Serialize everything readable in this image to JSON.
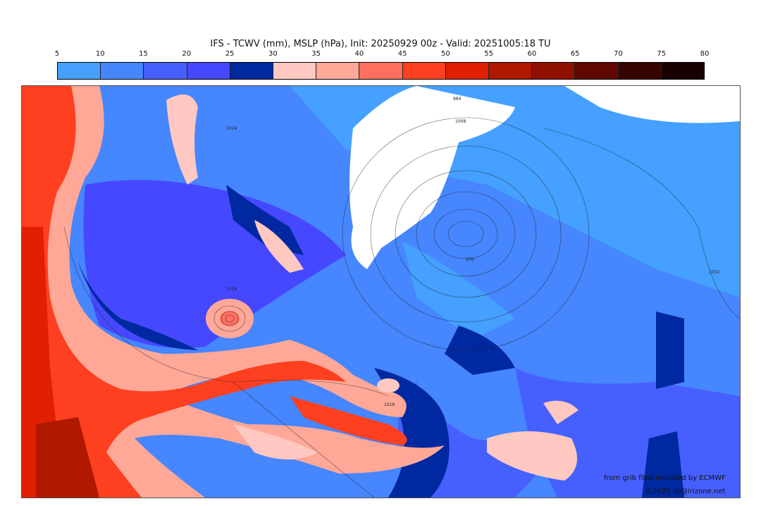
{
  "title": "IFS - TCWV (mm), MSLP (hPa), Init: 20250929 00z - Valid: 20251005:18 TU",
  "colorbar": {
    "ticks": [
      "5",
      "10",
      "15",
      "20",
      "25",
      "30",
      "35",
      "40",
      "45",
      "50",
      "55",
      "60",
      "65",
      "70",
      "75",
      "80"
    ],
    "colors": [
      "#45a0ff",
      "#4686ff",
      "#4660ff",
      "#4648ff",
      "#0028a0",
      "#ffc8c0",
      "#ffa898",
      "#ff7060",
      "#ff4020",
      "#e02000",
      "#b01800",
      "#901000",
      "#600800",
      "#380400",
      "#180000"
    ]
  },
  "map": {
    "contour_labels": [
      "1016",
      "976",
      "1032",
      "1016",
      "1008",
      "1024",
      "984"
    ]
  },
  "credits": {
    "source": "from grib files provided by ECMWF",
    "copyright": "©2025 sb@irizone.net"
  }
}
